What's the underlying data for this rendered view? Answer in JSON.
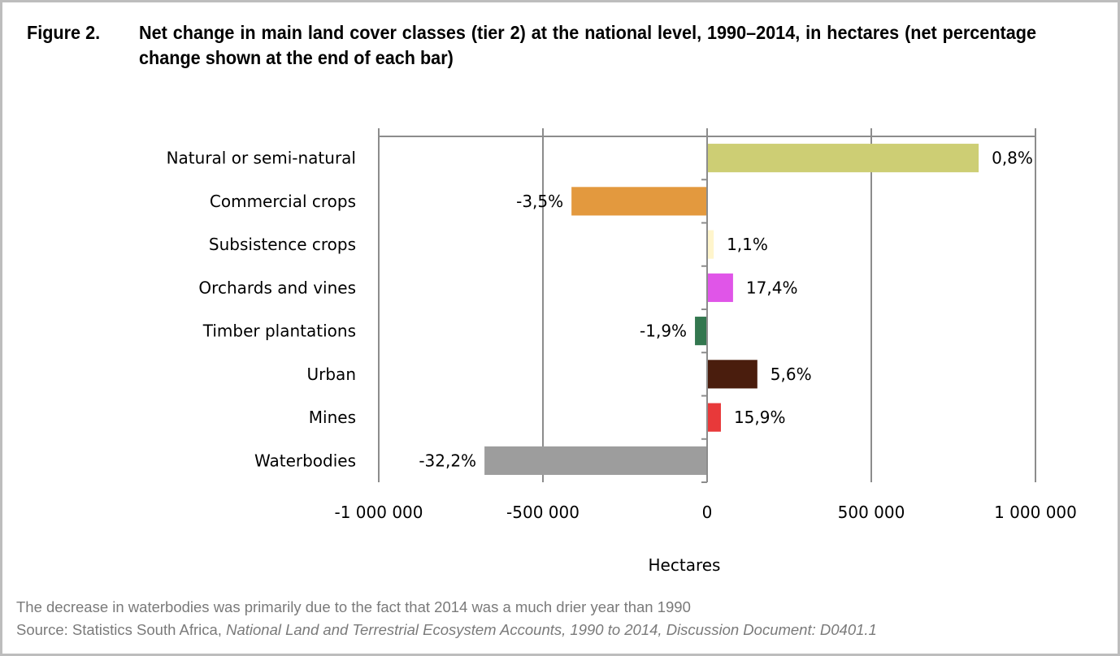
{
  "figure": {
    "number": "Figure 2.",
    "title": "Net change in main land cover classes (tier 2) at the national level, 1990–2014, in hectares (net percentage change shown at the end of each bar)"
  },
  "chart_data": {
    "type": "bar",
    "orientation": "horizontal",
    "title": "Net change in main land cover classes (tier 2) at the national level, 1990–2014, in hectares (net percentage change shown at the end of each bar)",
    "xlabel": "Hectares",
    "ylabel": "",
    "xlim": [
      -1000000,
      1000000
    ],
    "x_ticks": [
      -1000000,
      -500000,
      0,
      500000,
      1000000
    ],
    "x_tick_labels": [
      "-1 000 000",
      "-500 000",
      "0",
      "500 000",
      "1 000 000"
    ],
    "grid": "vertical",
    "legend": "none",
    "categories": [
      "Natural or semi-natural",
      "Commercial crops",
      "Subsistence crops",
      "Orchards and vines",
      "Timber plantations",
      "Urban",
      "Mines",
      "Waterbodies"
    ],
    "values": [
      827000,
      -413000,
      20000,
      79000,
      -37000,
      153000,
      42000,
      -678000
    ],
    "data_labels": [
      "0,8%",
      "-3,5%",
      "1,1%",
      "17,4%",
      "-1,9%",
      "5,6%",
      "15,9%",
      "-32,2%"
    ],
    "colors": [
      "#cdce74",
      "#e3993e",
      "#fff5cc",
      "#e055e8",
      "#33774f",
      "#4a1d0d",
      "#e8393a",
      "#9d9d9d"
    ]
  },
  "footer": {
    "note": "The decrease in waterbodies was primarily due to the fact that 2014 was a much drier year than 1990",
    "source_prefix": "Source: Statistics South Africa, ",
    "source_title": "National Land and Terrestrial Ecosystem Accounts, 1990 to 2014, Discussion Document: D0401.1"
  }
}
